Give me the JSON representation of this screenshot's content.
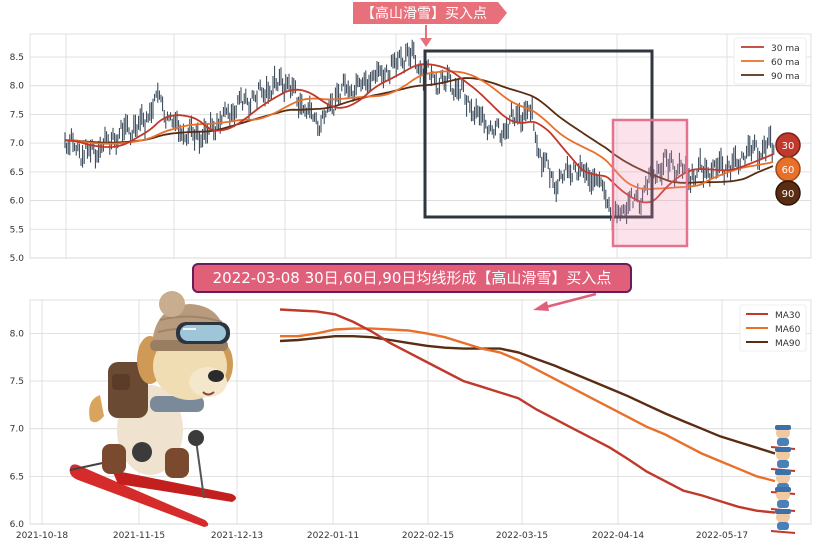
{
  "chart_data": [
    {
      "type": "line",
      "title": "",
      "ylim": [
        5.0,
        8.9
      ],
      "yticks": [
        5.0,
        5.5,
        6.0,
        6.5,
        7.0,
        7.5,
        8.0,
        8.5
      ],
      "grid": true,
      "legend_position": "top-right",
      "series": [
        {
          "name": "30 ma",
          "color": "#c0392b"
        },
        {
          "name": "60 ma",
          "color": "#e8702a"
        },
        {
          "name": "90 ma",
          "color": "#5a2d12"
        }
      ],
      "price_bar_color": "#2c3e50",
      "badges": [
        "30",
        "60",
        "90"
      ],
      "top_banner": "【高山滑雪】买入点"
    },
    {
      "type": "line",
      "title": "",
      "ylim": [
        6.0,
        8.35
      ],
      "yticks": [
        6.0,
        6.5,
        7.0,
        7.5,
        8.0
      ],
      "xticks": [
        "2021-10-18",
        "2021-11-15",
        "2021-12-13",
        "2022-01-11",
        "2022-02-15",
        "2022-03-15",
        "2022-04-14",
        "2022-05-17"
      ],
      "grid": true,
      "legend_position": "top-right",
      "banner": "2022-03-08 30日,60日,90日均线形成【高山滑雪】买入点",
      "series": [
        {
          "name": "MA30",
          "color": "#c0392b",
          "values": [
            8.25,
            8.24,
            8.23,
            8.2,
            8.12,
            8.02,
            7.9,
            7.8,
            7.7,
            7.6,
            7.5,
            7.44,
            7.38,
            7.32,
            7.2,
            7.1,
            7.0,
            6.9,
            6.8,
            6.68,
            6.55,
            6.45,
            6.35,
            6.3,
            6.24,
            6.18,
            6.14,
            6.12
          ]
        },
        {
          "name": "MA60",
          "color": "#e8702a",
          "values": [
            7.97,
            7.97,
            8.0,
            8.04,
            8.05,
            8.05,
            8.04,
            8.03,
            8.0,
            7.96,
            7.9,
            7.84,
            7.8,
            7.72,
            7.62,
            7.52,
            7.42,
            7.32,
            7.22,
            7.12,
            7.02,
            6.94,
            6.84,
            6.74,
            6.66,
            6.58,
            6.5,
            6.45
          ]
        },
        {
          "name": "MA90",
          "color": "#5a2d12",
          "values": [
            7.92,
            7.93,
            7.95,
            7.97,
            7.97,
            7.96,
            7.93,
            7.9,
            7.87,
            7.85,
            7.84,
            7.84,
            7.84,
            7.8,
            7.73,
            7.66,
            7.58,
            7.5,
            7.42,
            7.34,
            7.25,
            7.16,
            7.08,
            7.0,
            6.92,
            6.86,
            6.8,
            6.74
          ]
        }
      ]
    }
  ]
}
